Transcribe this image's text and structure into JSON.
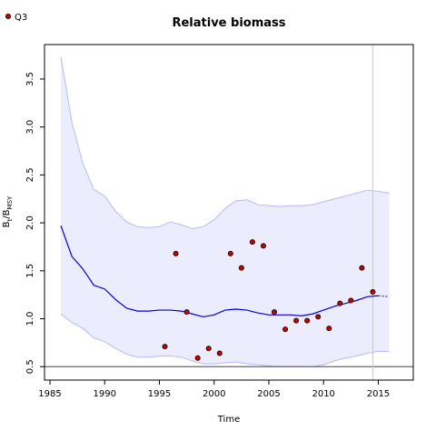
{
  "chart_data": {
    "type": "line",
    "title": "Relative biomass",
    "xlabel": "Time",
    "ylabel": {
      "main": "B",
      "sub1": "t",
      "mid": "/B",
      "sub2": "MSY"
    },
    "xlim": [
      1984.5,
      2018.2
    ],
    "ylim": [
      0.36,
      3.86
    ],
    "xticks": [
      "1985",
      "1990",
      "1995",
      "2000",
      "2005",
      "2010",
      "2015"
    ],
    "yticks": [
      "0.5",
      "1.0",
      "1.5",
      "2.0",
      "2.5",
      "3.0",
      "3.5"
    ],
    "reference_line_y": 0.5,
    "vertical_line_x": 2014.5,
    "legend": {
      "position": "top-left",
      "label": "Q3"
    },
    "colors": {
      "median": "#0000dd",
      "band_fill": "#ececff",
      "band_edge": "#b8b8ff",
      "points": "#cc0000",
      "reference": "#666666",
      "vline": "#c8c8c8"
    },
    "series": [
      {
        "name": "Q3",
        "kind": "points",
        "x": [
          1995.5,
          1996.5,
          1997.5,
          1998.5,
          1999.5,
          2000.5,
          2001.5,
          2002.5,
          2003.5,
          2004.5,
          2005.5,
          2006.5,
          2007.5,
          2008.5,
          2009.5,
          2010.5,
          2011.5,
          2012.5,
          2013.5,
          2014.5
        ],
        "y": [
          0.71,
          1.68,
          1.07,
          0.59,
          0.69,
          0.64,
          1.68,
          1.53,
          1.8,
          1.76,
          1.07,
          0.89,
          0.98,
          0.98,
          1.02,
          0.9,
          1.16,
          1.19,
          1.53,
          1.28
        ]
      },
      {
        "kind": "median",
        "x": [
          1986,
          1987,
          1988,
          1989,
          1990,
          1991,
          1992,
          1993,
          1994,
          1995,
          1996,
          1997,
          1998,
          1999,
          2000,
          2001,
          2002,
          2003,
          2004,
          2005,
          2006,
          2007,
          2008,
          2009,
          2010,
          2011,
          2012,
          2013,
          2014,
          2015
        ],
        "y": [
          1.97,
          1.65,
          1.52,
          1.35,
          1.31,
          1.2,
          1.11,
          1.08,
          1.08,
          1.09,
          1.09,
          1.08,
          1.05,
          1.02,
          1.04,
          1.09,
          1.1,
          1.09,
          1.06,
          1.04,
          1.04,
          1.04,
          1.03,
          1.05,
          1.09,
          1.13,
          1.16,
          1.19,
          1.23,
          1.24
        ]
      },
      {
        "kind": "projection",
        "x": [
          2015,
          2016
        ],
        "y": [
          1.24,
          1.23
        ]
      },
      {
        "kind": "band",
        "x": [
          1986,
          1987,
          1988,
          1989,
          1990,
          1991,
          1992,
          1993,
          1994,
          1995,
          1996,
          1997,
          1998,
          1999,
          2000,
          2001,
          2002,
          2003,
          2004,
          2005,
          2006,
          2007,
          2008,
          2009,
          2010,
          2011,
          2012,
          2013,
          2014,
          2015,
          2016
        ],
        "lower": [
          1.05,
          0.96,
          0.9,
          0.8,
          0.76,
          0.69,
          0.63,
          0.6,
          0.6,
          0.61,
          0.61,
          0.6,
          0.56,
          0.53,
          0.53,
          0.54,
          0.55,
          0.53,
          0.52,
          0.51,
          0.5,
          0.5,
          0.5,
          0.5,
          0.52,
          0.56,
          0.59,
          0.61,
          0.64,
          0.66,
          0.66
        ],
        "upper": [
          3.73,
          3.05,
          2.62,
          2.35,
          2.28,
          2.12,
          2.01,
          1.96,
          1.95,
          1.96,
          2.01,
          1.98,
          1.94,
          1.96,
          2.03,
          2.15,
          2.23,
          2.24,
          2.19,
          2.18,
          2.17,
          2.18,
          2.18,
          2.19,
          2.22,
          2.25,
          2.28,
          2.31,
          2.34,
          2.33,
          2.31
        ]
      }
    ]
  }
}
